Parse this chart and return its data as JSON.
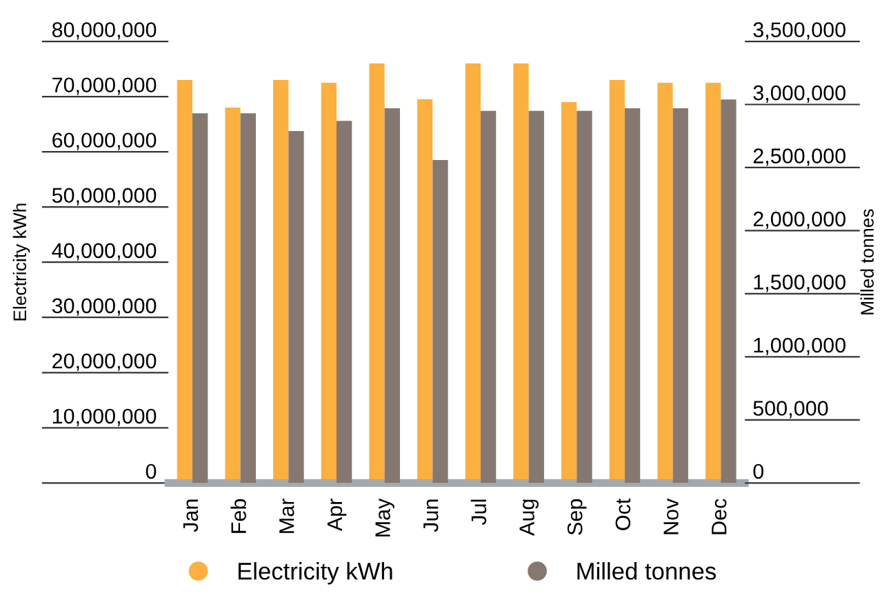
{
  "chart_data": {
    "type": "bar",
    "categories": [
      "Jan",
      "Feb",
      "Mar",
      "Apr",
      "May",
      "Jun",
      "Jul",
      "Aug",
      "Sep",
      "Oct",
      "Nov",
      "Dec"
    ],
    "ylabel": "Electricity kWh",
    "y2label": "Milled tonnes",
    "ylim": [
      0,
      80000000
    ],
    "yticks": [
      {
        "value": 0,
        "label": "0"
      },
      {
        "value": 10000000,
        "label": "10,000,000"
      },
      {
        "value": 20000000,
        "label": "20,000,000"
      },
      {
        "value": 30000000,
        "label": "30,000,000"
      },
      {
        "value": 40000000,
        "label": "40,000,000"
      },
      {
        "value": 50000000,
        "label": "50,000,000"
      },
      {
        "value": 60000000,
        "label": "60,000,000"
      },
      {
        "value": 70000000,
        "label": "70,000,000"
      },
      {
        "value": 80000000,
        "label": "80,000,000"
      }
    ],
    "y2lim": [
      0,
      3500000
    ],
    "y2ticks": [
      {
        "value": 0,
        "label": "0"
      },
      {
        "value": 500000,
        "label": "500,000"
      },
      {
        "value": 1000000,
        "label": "1,000,000"
      },
      {
        "value": 1500000,
        "label": "1,500,000"
      },
      {
        "value": 2000000,
        "label": "2,000,000"
      },
      {
        "value": 2500000,
        "label": "2,500,000"
      },
      {
        "value": 3000000,
        "label": "3,000,000"
      },
      {
        "value": 3500000,
        "label": "3,500,000"
      }
    ],
    "legend": "bottom",
    "series": [
      {
        "name": "Electricity kWh",
        "color": "#fbb040",
        "values": [
          73000000,
          68000000,
          73000000,
          72500000,
          76000000,
          69500000,
          76000000,
          76000000,
          69000000,
          73000000,
          72500000,
          72500000
        ]
      },
      {
        "name": "Milled tonnes",
        "color": "#857870",
        "axis": "y2",
        "values": [
          2930000,
          2930000,
          2790000,
          2870000,
          2970000,
          2560000,
          2950000,
          2950000,
          2950000,
          2970000,
          2970000,
          3040000
        ]
      }
    ]
  }
}
